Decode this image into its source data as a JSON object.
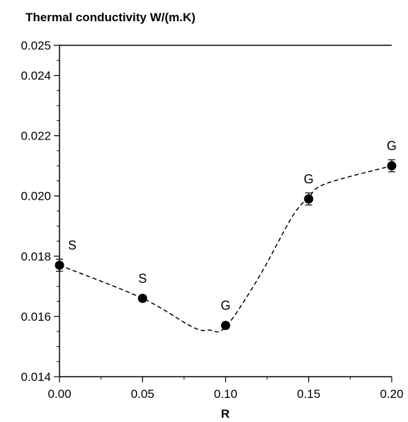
{
  "chart_data": {
    "type": "scatter",
    "title": "Thermal conductivity W/(m.K)",
    "xlabel": "R",
    "ylabel": "",
    "xlim": [
      0,
      0.2
    ],
    "ylim": [
      0.014,
      0.025
    ],
    "x_ticks": [
      "0.00",
      "0.05",
      "0.10",
      "0.15",
      "0.20"
    ],
    "y_ticks": [
      "0.014",
      "0.016",
      "0.018",
      "0.020",
      "0.022",
      "0.024",
      "0.025"
    ],
    "reference_line": 0.025,
    "grid": false,
    "legend": "none",
    "points": [
      {
        "x": 0.0,
        "y": 0.0177,
        "err": 0.0002,
        "label": "S"
      },
      {
        "x": 0.05,
        "y": 0.0166,
        "err": 0.0001,
        "label": "S"
      },
      {
        "x": 0.1,
        "y": 0.0157,
        "err": 0.0001,
        "label": "G"
      },
      {
        "x": 0.15,
        "y": 0.0199,
        "err": 0.0002,
        "label": "G"
      },
      {
        "x": 0.2,
        "y": 0.021,
        "err": 0.0002,
        "label": "G"
      }
    ],
    "trend_line": {
      "style": "dashed",
      "x": [
        0.0,
        0.05,
        0.08,
        0.09,
        0.1,
        0.12,
        0.14,
        0.15,
        0.16,
        0.2
      ],
      "y": [
        0.0177,
        0.0166,
        0.01565,
        0.01555,
        0.01565,
        0.0173,
        0.0193,
        0.01995,
        0.0204,
        0.021
      ]
    }
  }
}
